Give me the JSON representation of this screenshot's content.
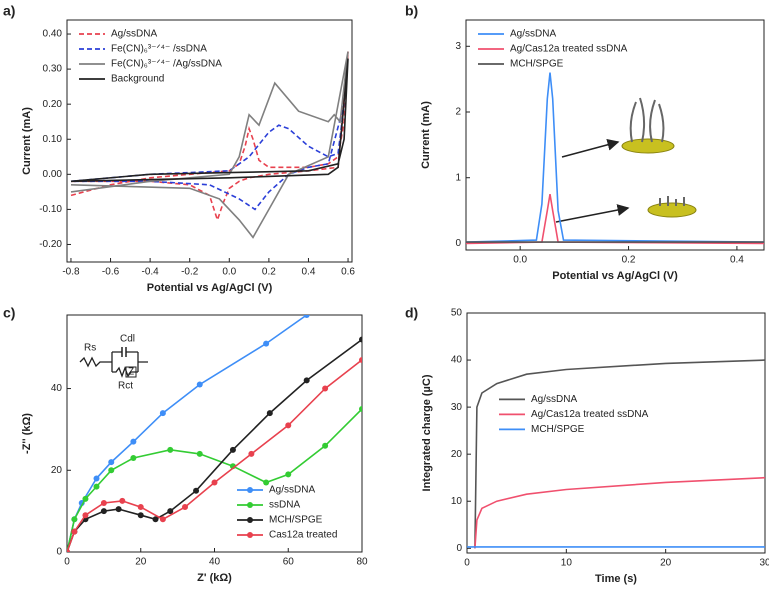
{
  "chart_data": [
    {
      "type": "line",
      "panel": "a)",
      "xlabel": "Potential vs Ag/AgCl (V)",
      "ylabel": "Current (mA)",
      "legend": "upper left",
      "xlim": [
        -0.82,
        0.62
      ],
      "xticks": [
        -0.8,
        -0.6,
        -0.4,
        -0.2,
        {
          "value": 0,
          "label": "0.0"
        },
        0.2,
        0.4,
        0.6
      ],
      "ylim": [
        -0.25,
        0.44
      ],
      "yticks": [
        {
          "value": -0.2,
          "label": "-0.20"
        },
        {
          "value": -0.1,
          "label": "-0.10"
        },
        {
          "value": 0,
          "label": "0.00"
        },
        {
          "value": 0.1,
          "label": "0.10"
        },
        {
          "value": 0.2,
          "label": "0.20"
        },
        {
          "value": 0.3,
          "label": "0.30"
        },
        {
          "value": 0.4,
          "label": "0.40"
        }
      ],
      "series": [
        {
          "name": "Ag/ssDNA",
          "color": "#e8414e",
          "dash": true,
          "x": [
            -0.8,
            -0.6,
            -0.4,
            -0.2,
            0,
            0.05,
            0.08,
            0.1,
            0.12,
            0.15,
            0.2,
            0.3,
            0.4,
            0.5,
            0.55,
            0.58,
            0.6,
            0.55,
            0.4,
            0.2,
            0.1,
            0.05,
            0,
            -0.03,
            -0.06,
            -0.1,
            -0.2,
            -0.4,
            -0.6,
            -0.8
          ],
          "values": [
            -0.06,
            -0.03,
            -0.01,
            0,
            0.01,
            0.03,
            0.08,
            0.13,
            0.1,
            0.04,
            0.02,
            0.02,
            0.02,
            0.03,
            0.05,
            0.15,
            0.35,
            0.02,
            0.01,
            0,
            -0.01,
            -0.02,
            -0.04,
            -0.08,
            -0.13,
            -0.06,
            -0.03,
            -0.02,
            -0.02,
            -0.02
          ]
        },
        {
          "name": "Fe(CN)₆³⁻ᐟ⁴⁻ /ssDNA",
          "color": "#2b3fd8",
          "dash": true,
          "x": [
            -0.8,
            -0.4,
            0,
            0.1,
            0.2,
            0.25,
            0.3,
            0.4,
            0.5,
            0.55,
            0.58,
            0.5,
            0.4,
            0.3,
            0.2,
            0.13,
            0.05,
            -0.1,
            -0.4,
            -0.8
          ],
          "values": [
            -0.02,
            0,
            0.01,
            0.05,
            0.12,
            0.14,
            0.13,
            0.08,
            0.05,
            0.06,
            0.2,
            0.03,
            0.02,
            0,
            -0.05,
            -0.1,
            -0.07,
            -0.03,
            -0.02,
            -0.02
          ]
        },
        {
          "name": "Fe(CN)₆³⁻ᐟ⁴⁻ /Ag/ssDNA",
          "color": "#808080",
          "dash": false,
          "x": [
            -0.8,
            -0.4,
            0,
            0.05,
            0.1,
            0.15,
            0.23,
            0.35,
            0.5,
            0.53,
            0.56,
            0.6,
            0.5,
            0.3,
            0.2,
            0.12,
            0.05,
            -0.05,
            -0.2,
            -0.8
          ],
          "values": [
            -0.05,
            -0.02,
            0,
            0.05,
            0.17,
            0.14,
            0.26,
            0.18,
            0.15,
            0.17,
            0.15,
            0.35,
            0.05,
            0,
            -0.1,
            -0.18,
            -0.13,
            -0.07,
            -0.04,
            -0.03
          ]
        },
        {
          "name": "Background",
          "color": "#222222",
          "dash": false,
          "x": [
            -0.8,
            -0.4,
            0,
            0.4,
            0.55,
            0.58,
            0.6,
            0.55,
            0.5,
            0,
            -0.4,
            -0.8
          ],
          "values": [
            -0.02,
            0,
            0.005,
            0.01,
            0.03,
            0.1,
            0.33,
            0.02,
            0,
            -0.01,
            -0.015,
            -0.02
          ]
        }
      ]
    },
    {
      "type": "line",
      "panel": "b)",
      "xlabel": "Potential vs Ag/AgCl (V)",
      "ylabel": "Current (mA)",
      "legend": "upper left",
      "xlim": [
        -0.1,
        0.45
      ],
      "xticks": [
        {
          "value": 0,
          "label": "0.0"
        },
        0.2,
        0.4
      ],
      "ylim": [
        -0.1,
        3.4
      ],
      "yticks": [
        0,
        1,
        2,
        3
      ],
      "series": [
        {
          "name": "Ag/ssDNA",
          "color": "#3e8ef7",
          "dash": false,
          "x": [
            -0.1,
            0.03,
            0.04,
            0.05,
            0.055,
            0.06,
            0.07,
            0.08,
            0.45
          ],
          "values": [
            0.02,
            0.05,
            0.6,
            2.2,
            2.6,
            2.2,
            0.5,
            0.05,
            0.02
          ]
        },
        {
          "name": "Ag/Cas12a treated ssDNA",
          "color": "#f0506e",
          "dash": false,
          "x": [
            -0.1,
            0.04,
            0.05,
            0.055,
            0.06,
            0.07,
            0.45
          ],
          "values": [
            0,
            0.02,
            0.5,
            0.75,
            0.5,
            0.02,
            0
          ]
        },
        {
          "name": "MCH/SPGE",
          "color": "#555555",
          "dash": false,
          "x": [
            -0.1,
            0.45
          ],
          "values": [
            0.02,
            0.02
          ]
        }
      ]
    },
    {
      "type": "line",
      "panel": "c)",
      "xlabel": "Z' (kΩ)",
      "ylabel": "-Z'' (kΩ)",
      "legend": "lower right",
      "markers": true,
      "annotations": [
        "Rs",
        "Cdl",
        "Rct",
        "Z"
      ],
      "xlim": [
        0,
        80
      ],
      "xticks": [
        0,
        20,
        40,
        60,
        80
      ],
      "ylim": [
        0,
        58
      ],
      "yticks": [
        0,
        20,
        40
      ],
      "series": [
        {
          "name": "Ag/ssDNA",
          "color": "#3e8ef7",
          "dash": false,
          "x": [
            0,
            2,
            4,
            8,
            12,
            18,
            26,
            36,
            54,
            65
          ],
          "values": [
            0,
            8,
            12,
            18,
            22,
            27,
            34,
            41,
            51,
            58
          ]
        },
        {
          "name": "ssDNA",
          "color": "#33cc33",
          "dash": false,
          "x": [
            0,
            2,
            5,
            8,
            12,
            18,
            28,
            36,
            45,
            54,
            60,
            70,
            80
          ],
          "values": [
            0,
            8,
            13,
            16,
            20,
            23,
            25,
            24,
            21,
            17,
            19,
            26,
            35
          ]
        },
        {
          "name": "MCH/SPGE",
          "color": "#222222",
          "dash": false,
          "x": [
            0,
            2,
            5,
            10,
            14,
            20,
            24,
            28,
            35,
            45,
            55,
            65,
            80
          ],
          "values": [
            0,
            5,
            8,
            10,
            10.5,
            9,
            8,
            10,
            15,
            25,
            34,
            42,
            52
          ]
        },
        {
          "name": "Cas12a treated",
          "color": "#e8414e",
          "dash": false,
          "x": [
            0,
            2,
            5,
            10,
            15,
            20,
            26,
            32,
            40,
            50,
            60,
            70,
            80
          ],
          "values": [
            0,
            5,
            9,
            12,
            12.5,
            11,
            8,
            11,
            17,
            24,
            31,
            40,
            47
          ]
        }
      ]
    },
    {
      "type": "line",
      "panel": "d)",
      "xlabel": "Time (s)",
      "ylabel": "Integrated charge (µC)",
      "legend": "center left",
      "xlim": [
        0,
        30
      ],
      "xticks": [
        0,
        10,
        20,
        30
      ],
      "ylim": [
        -1,
        50
      ],
      "yticks": [
        0,
        10,
        20,
        30,
        40,
        50
      ],
      "series": [
        {
          "name": "Ag/ssDNA",
          "color": "#555555",
          "dash": false,
          "x": [
            0.8,
            1,
            1.5,
            3,
            6,
            10,
            20,
            30
          ],
          "values": [
            0,
            30,
            33,
            35,
            37,
            38,
            39.3,
            40
          ]
        },
        {
          "name": "Ag/Cas12a treated ssDNA",
          "color": "#f0506e",
          "dash": false,
          "x": [
            0.8,
            1,
            1.5,
            3,
            6,
            10,
            20,
            30
          ],
          "values": [
            0,
            6,
            8.5,
            10,
            11.5,
            12.5,
            14,
            15
          ]
        },
        {
          "name": "MCH/SPGE",
          "color": "#3e8ef7",
          "dash": false,
          "x": [
            0,
            30
          ],
          "values": [
            0.3,
            0.3
          ]
        }
      ]
    }
  ]
}
